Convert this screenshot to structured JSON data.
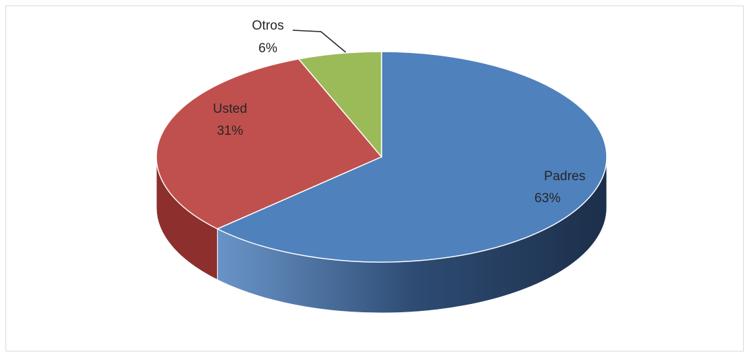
{
  "chart_data": {
    "type": "pie",
    "style": "3d",
    "slices": [
      {
        "name": "Padres",
        "value": 63,
        "label": "63%",
        "color": "#4F81BD",
        "side_color": "#2E4C74"
      },
      {
        "name": "Usted",
        "value": 31,
        "label": "31%",
        "color": "#C0504D",
        "side_color": "#8C2F2D"
      },
      {
        "name": "Otros",
        "value": 6,
        "label": "6%",
        "color": "#9BBB59",
        "side_color": "#6E8A3A"
      }
    ],
    "legend": "none",
    "data_labels": "category-and-percent"
  }
}
